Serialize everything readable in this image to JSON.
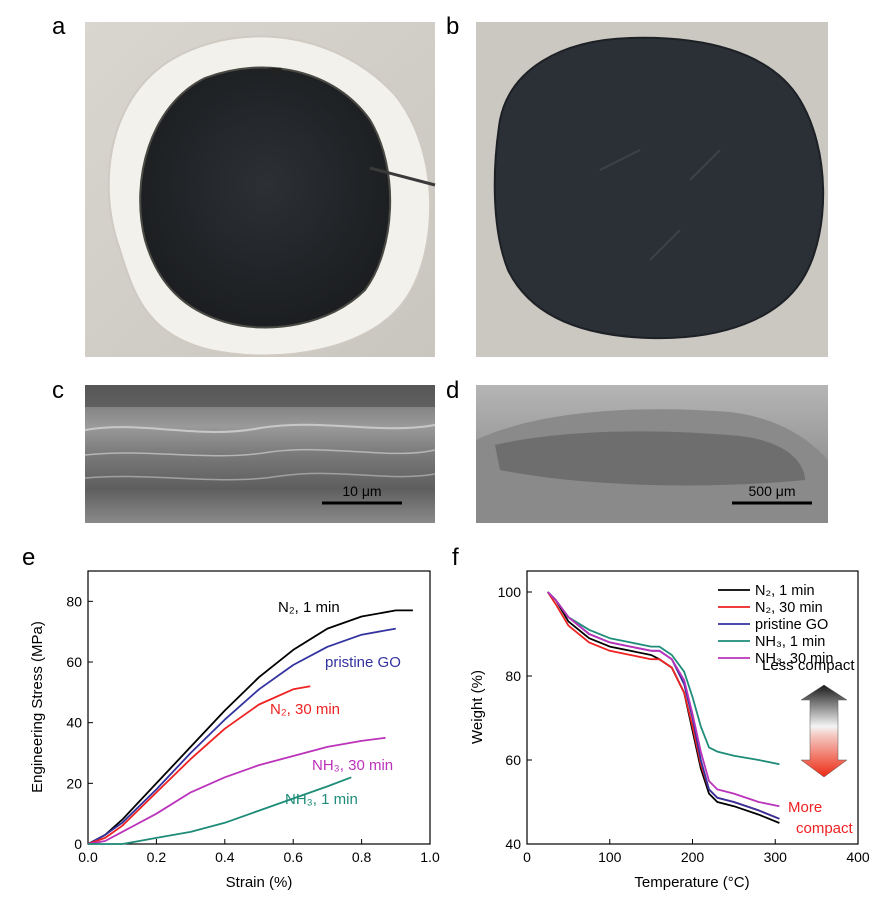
{
  "panels": {
    "a": {
      "letter": "a"
    },
    "b": {
      "letter": "b"
    },
    "c": {
      "letter": "c",
      "scale_bar": "10 μm"
    },
    "d": {
      "letter": "d",
      "scale_bar": "500 μm"
    },
    "e": {
      "letter": "e"
    },
    "f": {
      "letter": "f"
    }
  },
  "chart_data": [
    {
      "type": "line",
      "panel": "e",
      "xlabel": "Strain (%)",
      "ylabel": "Engineering Stress (MPa)",
      "xlim": [
        0.0,
        1.0
      ],
      "ylim": [
        0,
        90
      ],
      "xticks": [
        0.0,
        0.2,
        0.4,
        0.6,
        0.8,
        1.0
      ],
      "xtick_labels": [
        "0.0",
        "0.2",
        "0.4",
        "0.6",
        "0.8",
        "1.0"
      ],
      "yticks": [
        0,
        20,
        40,
        60,
        80
      ],
      "ytick_labels": [
        "0",
        "20",
        "40",
        "60",
        "80"
      ],
      "series": [
        {
          "name": "N₂, 1 min",
          "color": "#000000",
          "x": [
            0.0,
            0.05,
            0.1,
            0.2,
            0.3,
            0.4,
            0.5,
            0.6,
            0.7,
            0.8,
            0.9,
            0.95
          ],
          "y": [
            0,
            3,
            8,
            20,
            32,
            44,
            55,
            64,
            71,
            75,
            77,
            77
          ]
        },
        {
          "name": "pristine GO",
          "color": "#3333a0",
          "x": [
            0.0,
            0.05,
            0.1,
            0.2,
            0.3,
            0.4,
            0.5,
            0.6,
            0.7,
            0.8,
            0.9
          ],
          "y": [
            0,
            3,
            7,
            18,
            30,
            41,
            51,
            59,
            65,
            69,
            71
          ]
        },
        {
          "name": "N₂, 30 min",
          "color": "#ee2222",
          "x": [
            0.0,
            0.05,
            0.1,
            0.2,
            0.3,
            0.4,
            0.5,
            0.6,
            0.65
          ],
          "y": [
            0,
            2,
            6,
            17,
            28,
            38,
            46,
            51,
            52
          ]
        },
        {
          "name": "NH₃, 30 min",
          "color": "#bb33bb",
          "x": [
            0.0,
            0.05,
            0.1,
            0.2,
            0.3,
            0.4,
            0.5,
            0.6,
            0.7,
            0.8,
            0.87
          ],
          "y": [
            0,
            1,
            4,
            10,
            17,
            22,
            26,
            29,
            32,
            34,
            35
          ]
        },
        {
          "name": "NH₃, 1 min",
          "color": "#1e8c78",
          "x": [
            0.0,
            0.1,
            0.15,
            0.2,
            0.3,
            0.4,
            0.5,
            0.6,
            0.7,
            0.77
          ],
          "y": [
            0,
            0,
            1,
            2,
            4,
            7,
            11,
            15,
            19,
            22
          ]
        }
      ],
      "annotations": [
        {
          "text": "N₂, 1 min",
          "color": "#000000"
        },
        {
          "text": "pristine GO",
          "color": "#3333a0"
        },
        {
          "text": "N₂, 30 min",
          "color": "#ee2222"
        },
        {
          "text": "NH₃, 30 min",
          "color": "#bb33bb"
        },
        {
          "text": "NH₃, 1 min",
          "color": "#1e8c78"
        }
      ]
    },
    {
      "type": "line",
      "panel": "f",
      "xlabel": "Temperature (°C)",
      "ylabel": "Weight (%)",
      "xlim": [
        0,
        400
      ],
      "ylim": [
        40,
        105
      ],
      "xticks": [
        0,
        100,
        200,
        300,
        400
      ],
      "xtick_labels": [
        "0",
        "100",
        "200",
        "300",
        "400"
      ],
      "yticks": [
        40,
        60,
        80,
        100
      ],
      "ytick_labels": [
        "40",
        "60",
        "80",
        "100"
      ],
      "legend_position": "top-right",
      "series": [
        {
          "name": "N₂, 1 min",
          "color": "#000000",
          "x": [
            25,
            35,
            50,
            75,
            100,
            125,
            150,
            160,
            175,
            190,
            200,
            210,
            220,
            230,
            250,
            280,
            305
          ],
          "y": [
            100,
            98,
            93,
            89,
            87,
            86,
            85,
            84,
            82,
            76,
            67,
            58,
            52,
            50,
            49,
            47,
            45
          ]
        },
        {
          "name": "N₂, 30 min",
          "color": "#ee2222",
          "x": [
            25,
            35,
            50,
            75,
            100,
            125,
            150,
            160,
            175,
            190,
            200,
            210,
            220,
            230,
            250,
            280,
            305
          ],
          "y": [
            100,
            97,
            92,
            88,
            86,
            85,
            84,
            84,
            82,
            76,
            68,
            59,
            53,
            51,
            50,
            48,
            46
          ]
        },
        {
          "name": "pristine GO",
          "color": "#3333a0",
          "x": [
            25,
            35,
            50,
            75,
            100,
            125,
            150,
            160,
            175,
            190,
            200,
            210,
            220,
            230,
            250,
            280,
            305
          ],
          "y": [
            100,
            98,
            94,
            90,
            88,
            87,
            86,
            86,
            84,
            78,
            70,
            60,
            53,
            51,
            50,
            48,
            46
          ]
        },
        {
          "name": "NH₃, 1 min",
          "color": "#1e8c78",
          "x": [
            25,
            35,
            50,
            75,
            100,
            125,
            150,
            160,
            175,
            190,
            200,
            210,
            220,
            230,
            250,
            280,
            305
          ],
          "y": [
            100,
            98,
            94,
            91,
            89,
            88,
            87,
            87,
            85,
            81,
            75,
            68,
            63,
            62,
            61,
            60,
            59
          ]
        },
        {
          "name": "NH₃, 30 min",
          "color": "#bb33bb",
          "x": [
            25,
            35,
            50,
            75,
            100,
            125,
            150,
            160,
            175,
            190,
            200,
            210,
            220,
            230,
            250,
            280,
            305
          ],
          "y": [
            100,
            98,
            94,
            90,
            88,
            87,
            86,
            86,
            84,
            79,
            71,
            62,
            55,
            53,
            52,
            50,
            49
          ]
        }
      ],
      "annotations": [
        {
          "text": "Less compact",
          "color": "#000000"
        },
        {
          "text": "More",
          "color": "#ee2222"
        },
        {
          "text": "compact",
          "color": "#ee2222"
        }
      ]
    }
  ]
}
